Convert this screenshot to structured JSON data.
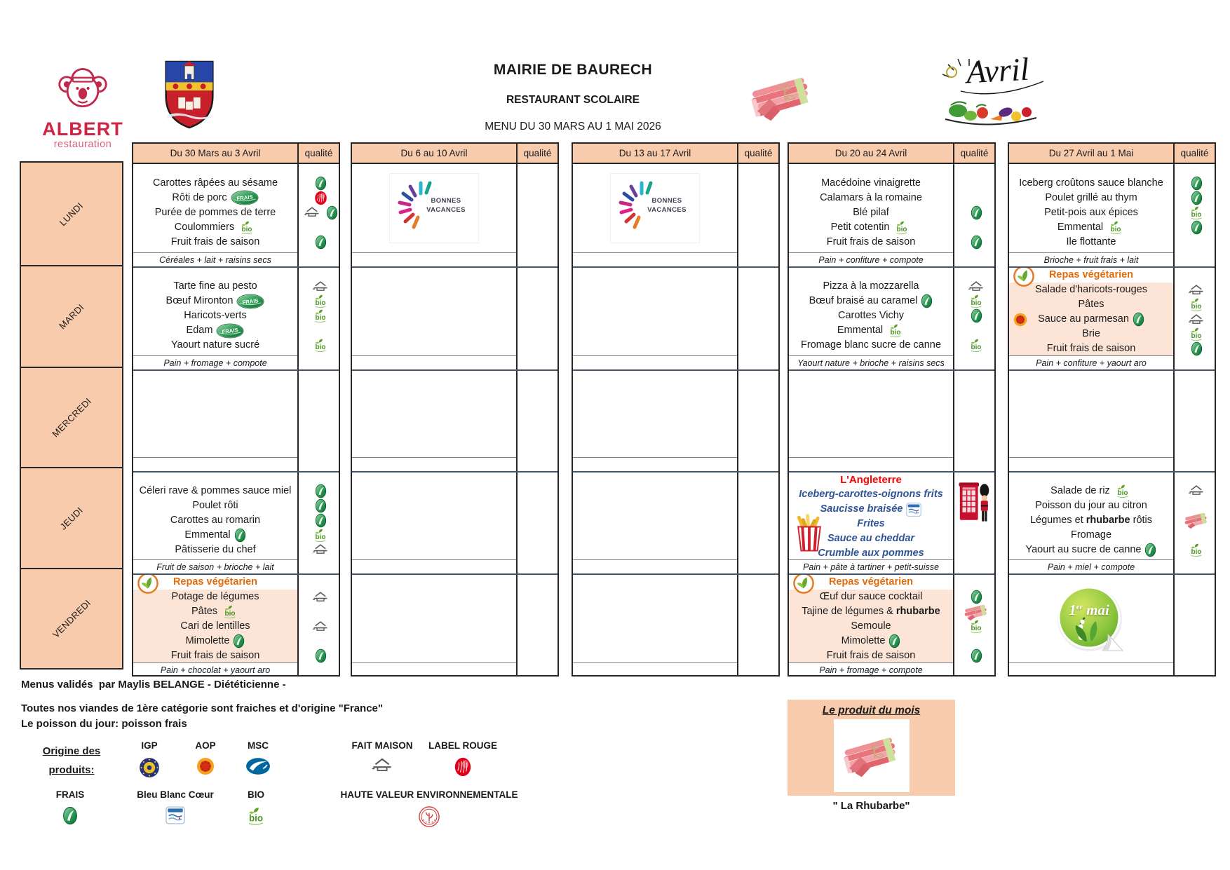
{
  "brand": {
    "name": "ALBERT",
    "tagline": "restauration"
  },
  "titles": {
    "line1": "MAIRIE DE BAURECH",
    "line2": "RESTAURANT SCOLAIRE",
    "line3": "MENU DU 30 MARS AU 1 MAI 2026"
  },
  "month_art": {
    "label": "Avril"
  },
  "colors": {
    "header_fill": "#F8CBAD",
    "vegetarian_fill": "#FCE4D6",
    "vegetarian_text": "#E26B0A",
    "theme_red": "#FF0000",
    "theme_blue": "#2F5496",
    "brand_red": "#CF2444"
  },
  "table": {
    "quality_header": "qualité",
    "days": [
      "LUNDI",
      "MARDI",
      "MERCREDI",
      "JEUDI",
      "VENDREDI"
    ],
    "weeks": [
      {
        "label": "Du 30 Mars au 3 Avril",
        "days": [
          {
            "items": [
              {
                "text": "Carottes râpées au sésame",
                "q": [
                  "frais-icon"
                ]
              },
              {
                "text": "Rôti de porc",
                "inline": [
                  "frais-label-icon"
                ],
                "q": [
                  "label-rouge-icon"
                ]
              },
              {
                "text": "Purée de pommes de terre",
                "q": [
                  "fait-maison-icon",
                  "frais-icon"
                ]
              },
              {
                "text": "Coulommiers",
                "inline": [
                  "bio-icon"
                ]
              },
              {
                "text": "Fruit frais de saison",
                "q": [
                  "frais-icon"
                ]
              }
            ],
            "snack": "Céréales + lait + raisins secs"
          },
          {
            "items": [
              {
                "text": "Tarte fine au pesto",
                "q": [
                  "fait-maison-icon"
                ]
              },
              {
                "text": "Bœuf Mironton",
                "inline": [
                  "frais-label-icon"
                ],
                "q": [
                  "bio-icon"
                ]
              },
              {
                "text": "Haricots-verts",
                "q": [
                  "bio-icon"
                ]
              },
              {
                "text": "Edam",
                "inline": [
                  "frais-label-icon"
                ]
              },
              {
                "text": "Yaourt nature sucré",
                "q": [
                  "bio-icon"
                ]
              }
            ],
            "snack": "Pain + fromage + compote"
          },
          {
            "items": [],
            "snack": ""
          },
          {
            "items": [
              {
                "text": "Céleri rave & pommes sauce miel",
                "q": [
                  "frais-icon"
                ]
              },
              {
                "text": "Poulet rôti",
                "q": [
                  "frais-icon"
                ]
              },
              {
                "text": "Carottes au romarin",
                "q": [
                  "frais-icon"
                ]
              },
              {
                "text": "Emmental",
                "inline": [
                  "frais-icon"
                ],
                "q": [
                  "bio-icon"
                ]
              },
              {
                "text": "Pâtisserie du chef",
                "q": [
                  "fait-maison-icon"
                ]
              }
            ],
            "snack": "Fruit de saison + brioche + lait"
          },
          {
            "vegetarian": true,
            "veg_label": "Repas végétarien",
            "items": [
              {
                "text": "Potage de légumes",
                "q": [
                  "fait-maison-icon"
                ]
              },
              {
                "text": "Pâtes",
                "inline": [
                  "bio-icon"
                ]
              },
              {
                "text": "Cari de lentilles",
                "q": [
                  "fait-maison-icon"
                ]
              },
              {
                "text": "Mimolette",
                "inline": [
                  "frais-icon"
                ]
              },
              {
                "text": "Fruit frais de saison",
                "q": [
                  "frais-icon"
                ]
              }
            ],
            "snack": "Pain + chocolat + yaourt aro"
          }
        ]
      },
      {
        "label": "Du 6 au 10 Avril",
        "days": [
          {
            "image": "bonnes-vacances-image",
            "items": [],
            "snack": ""
          },
          {
            "items": [],
            "snack": ""
          },
          {
            "items": [],
            "snack": ""
          },
          {
            "items": [],
            "snack": ""
          },
          {
            "items": [],
            "snack": ""
          }
        ]
      },
      {
        "label": "Du 13 au 17 Avril",
        "days": [
          {
            "image": "bonnes-vacances-image",
            "items": [],
            "snack": ""
          },
          {
            "items": [],
            "snack": ""
          },
          {
            "items": [],
            "snack": ""
          },
          {
            "items": [],
            "snack": ""
          },
          {
            "items": [],
            "snack": ""
          }
        ]
      },
      {
        "label": "Du 20 au 24 Avril",
        "days": [
          {
            "items": [
              {
                "text": "Macédoine vinaigrette"
              },
              {
                "text": "Calamars à la romaine"
              },
              {
                "text": "Blé pilaf",
                "q": [
                  "frais-icon"
                ]
              },
              {
                "text": "Petit cotentin",
                "inline": [
                  "bio-icon"
                ]
              },
              {
                "text": "Fruit frais de saison",
                "q": [
                  "frais-icon"
                ]
              }
            ],
            "snack": "Pain + confiture + compote"
          },
          {
            "items": [
              {
                "text": "Pizza à la mozzarella",
                "q": [
                  "fait-maison-icon"
                ]
              },
              {
                "text": "Bœuf braisé au caramel",
                "inline": [
                  "frais-icon"
                ],
                "q": [
                  "bio-icon"
                ]
              },
              {
                "text": "Carottes Vichy",
                "q": [
                  "frais-icon"
                ]
              },
              {
                "text": "Emmental",
                "inline": [
                  "bio-icon"
                ]
              },
              {
                "text": "Fromage blanc sucre de canne",
                "q": [
                  "bio-icon"
                ]
              }
            ],
            "snack": "Yaourt nature + brioche + raisins secs"
          },
          {
            "items": [],
            "snack": ""
          },
          {
            "theme": true,
            "theme_title": "L'Angleterre",
            "left_image": "fries-image",
            "quality_image": "london-image",
            "items": [
              {
                "text": "Iceberg-carottes-oignons frits"
              },
              {
                "text": "Saucisse braisée",
                "inline": [
                  "bleu-blanc-coeur-icon"
                ]
              },
              {
                "text": "Frites"
              },
              {
                "text": "Sauce au cheddar"
              },
              {
                "text": "Crumble aux pommes"
              }
            ],
            "snack": "Pain + pâte à tartiner + petit-suisse"
          },
          {
            "vegetarian": true,
            "veg_label": "Repas végétarien",
            "items": [
              {
                "text": "Œuf dur sauce cocktail",
                "q": [
                  "frais-icon"
                ]
              },
              {
                "text": "Tajine de légumes & **rhubarbe**",
                "q": [
                  "rhubarb-icon"
                ]
              },
              {
                "text": "Semoule",
                "q": [
                  "bio-icon"
                ]
              },
              {
                "text": "Mimolette",
                "inline": [
                  "frais-icon"
                ]
              },
              {
                "text": "Fruit frais de saison",
                "q": [
                  "frais-icon"
                ]
              }
            ],
            "snack": "Pain + fromage + compote"
          }
        ]
      },
      {
        "label": "Du 27 Avril au 1 Mai",
        "days": [
          {
            "items": [
              {
                "text": "Iceberg croûtons sauce blanche",
                "q": [
                  "frais-icon"
                ]
              },
              {
                "text": "Poulet grillé au thym",
                "q": [
                  "frais-icon"
                ]
              },
              {
                "text": "Petit-pois aux épices",
                "q": [
                  "bio-icon"
                ]
              },
              {
                "text": "Emmental",
                "inline": [
                  "bio-icon"
                ],
                "q": [
                  "frais-icon"
                ]
              },
              {
                "text": "Ile flottante"
              }
            ],
            "snack": "Brioche + fruit frais + lait"
          },
          {
            "vegetarian": true,
            "veg_label": "Repas végétarien",
            "items": [
              {
                "text": "Salade d'haricots-rouges",
                "q": [
                  "fait-maison-icon"
                ]
              },
              {
                "text": "Pâtes",
                "q": [
                  "bio-icon"
                ]
              },
              {
                "text": "Sauce au parmesan",
                "left": [
                  "aop-icon"
                ],
                "inline": [
                  "frais-icon"
                ],
                "q": [
                  "fait-maison-icon"
                ]
              },
              {
                "text": "Brie",
                "q": [
                  "bio-icon"
                ]
              },
              {
                "text": "Fruit frais de saison",
                "q": [
                  "frais-icon"
                ]
              }
            ],
            "snack": "Pain + confiture + yaourt aro"
          },
          {
            "items": [],
            "snack": ""
          },
          {
            "items": [
              {
                "text": "Salade de riz",
                "inline": [
                  "bio-icon"
                ],
                "q": [
                  "fait-maison-icon"
                ]
              },
              {
                "text": "Poisson du jour au citron"
              },
              {
                "text": "Légumes et **rhubarbe** rôtis",
                "q": [
                  "rhubarb-icon"
                ]
              },
              {
                "text": "Fromage"
              },
              {
                "text": "Yaourt au sucre de canne",
                "inline": [
                  "frais-icon"
                ],
                "q": [
                  "bio-icon"
                ]
              }
            ],
            "snack": "Pain + miel + compote"
          },
          {
            "image": "premier-mai-image",
            "items": [],
            "snack": ""
          }
        ]
      }
    ]
  },
  "images": {
    "bonnes_vacances_text": [
      "BONNES",
      "VACANCES"
    ],
    "premier_mai_text": "1er mai"
  },
  "footer": {
    "validated": "Menus validés  par Maylis BELANGE - Diététicienne -",
    "note1": "Toutes nos viandes de 1ère catégorie sont fraiches et d'origine \"France\"",
    "note2": "Le poisson du jour: poisson frais",
    "origin_title_line1": "Origine des",
    "origin_title_line2": "produits:",
    "legend_row1": [
      {
        "label": "IGP",
        "icon": "igp-icon"
      },
      {
        "label": "AOP",
        "icon": "aop-icon"
      },
      {
        "label": "MSC",
        "icon": "msc-icon"
      },
      {
        "label": "FAIT MAISON",
        "icon": "fait-maison-icon"
      },
      {
        "label": "LABEL ROUGE",
        "icon": "label-rouge-icon"
      }
    ],
    "legend_row2": [
      {
        "label": "FRAIS",
        "icon": "frais-icon"
      },
      {
        "label": "Bleu Blanc Cœur",
        "icon": "bleu-blanc-coeur-icon"
      },
      {
        "label": "BIO",
        "icon": "bio-icon"
      },
      {
        "label": "HAUTE VALEUR ENVIRONNEMENTALE",
        "icon": "hve-icon"
      }
    ],
    "product_of_month": {
      "title": "Le produit du mois",
      "caption": "\" La Rhubarbe\""
    }
  }
}
